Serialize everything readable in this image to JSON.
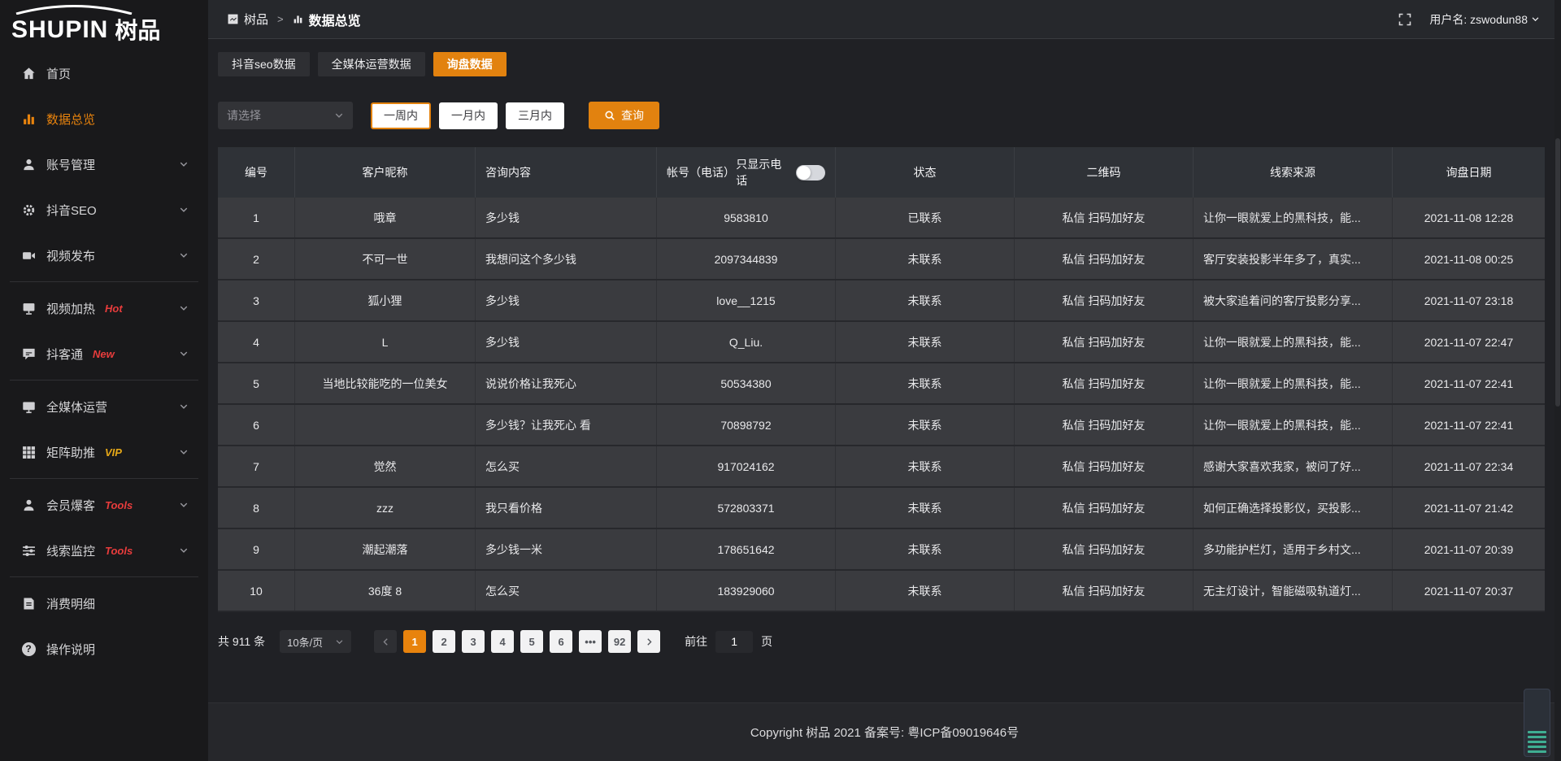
{
  "logo": {
    "text": "SHUPIN",
    "cn": "树品"
  },
  "header": {
    "breadcrumb": {
      "root": "树品",
      "separator": ">",
      "current": "数据总览"
    },
    "username_label": "用户名: zswodun88"
  },
  "sidebar": {
    "items": [
      {
        "key": "home",
        "label": "首页",
        "icon": "home-icon"
      },
      {
        "key": "data-overview",
        "label": "数据总览",
        "icon": "chart-icon",
        "active": true
      },
      {
        "key": "account-manage",
        "label": "账号管理",
        "icon": "user-icon",
        "chevron": true
      },
      {
        "key": "douyin-seo",
        "label": "抖音SEO",
        "icon": "gear-icon",
        "chevron": true
      },
      {
        "key": "video-publish",
        "label": "视频发布",
        "icon": "video-icon",
        "chevron": true,
        "divider_after": true
      },
      {
        "key": "video-heating",
        "label": "视频加热",
        "icon": "monitor-icon",
        "chevron": true,
        "badge": "Hot",
        "badge_color": "#e83c3c"
      },
      {
        "key": "doukutong",
        "label": "抖客通",
        "icon": "chat-icon",
        "chevron": true,
        "badge": "New",
        "badge_color": "#e83c3c",
        "divider_after": true
      },
      {
        "key": "all-media",
        "label": "全媒体运营",
        "icon": "display-icon",
        "chevron": true
      },
      {
        "key": "matrix-boost",
        "label": "矩阵助推",
        "icon": "grid-icon",
        "chevron": true,
        "badge": "VIP",
        "badge_color": "#e6a817",
        "divider_after": true
      },
      {
        "key": "member-baoke",
        "label": "会员爆客",
        "icon": "person-icon",
        "chevron": true,
        "badge": "Tools",
        "badge_color": "#e83c3c"
      },
      {
        "key": "lead-monitor",
        "label": "线索监控",
        "icon": "sliders-icon",
        "chevron": true,
        "badge": "Tools",
        "badge_color": "#e83c3c",
        "divider_after": true
      },
      {
        "key": "consumption",
        "label": "消费明细",
        "icon": "bill-icon"
      },
      {
        "key": "operation-guide",
        "label": "操作说明",
        "icon": "help-icon"
      }
    ]
  },
  "tabs": [
    {
      "key": "douyin-seo-data",
      "label": "抖音seo数据"
    },
    {
      "key": "media-operation-data",
      "label": "全媒体运营数据"
    },
    {
      "key": "inquiry-data",
      "label": "询盘数据",
      "active": true
    }
  ],
  "filters": {
    "select_placeholder": "请选择",
    "quick_ranges": [
      {
        "key": "week",
        "label": "一周内",
        "selected": true
      },
      {
        "key": "month",
        "label": "一月内"
      },
      {
        "key": "three-months",
        "label": "三月内"
      }
    ],
    "search_label": "查询"
  },
  "table": {
    "phone_toggle_label": "只显示电话",
    "columns": [
      {
        "key": "id",
        "label": "编号"
      },
      {
        "key": "nickname",
        "label": "客户昵称"
      },
      {
        "key": "content",
        "label": "咨询内容",
        "align": "left"
      },
      {
        "key": "account",
        "label": "帐号（电话）",
        "toggle": true
      },
      {
        "key": "status",
        "label": "状态"
      },
      {
        "key": "qr",
        "label": "二维码"
      },
      {
        "key": "source",
        "label": "线索来源",
        "value_align": "left"
      },
      {
        "key": "date",
        "label": "询盘日期"
      }
    ],
    "rows": [
      {
        "id": "1",
        "nickname": "哦章",
        "content": "多少钱",
        "account": "9583810",
        "status": "已联系",
        "contacted": true,
        "qr": "私信 扫码加好友",
        "source": "让你一眼就爱上的黑科技，能...",
        "date": "2021-11-08 12:28"
      },
      {
        "id": "2",
        "nickname": "不可一世",
        "content": "我想问这个多少钱",
        "account": "2097344839",
        "status": "未联系",
        "contacted": false,
        "qr": "私信 扫码加好友",
        "source": "客厅安装投影半年多了，真实...",
        "date": "2021-11-08 00:25"
      },
      {
        "id": "3",
        "nickname": "狐小狸",
        "content": "多少钱",
        "account": "love__1215",
        "status": "未联系",
        "contacted": false,
        "qr": "私信 扫码加好友",
        "source": "被大家追着问的客厅投影分享...",
        "date": "2021-11-07 23:18"
      },
      {
        "id": "4",
        "nickname": "L",
        "content": "多少钱",
        "account": "Q_Liu.",
        "status": "未联系",
        "contacted": false,
        "qr": "私信 扫码加好友",
        "source": "让你一眼就爱上的黑科技，能...",
        "date": "2021-11-07 22:47"
      },
      {
        "id": "5",
        "nickname": "当地比较能吃的一位美女",
        "content": "说说价格让我死心",
        "account": "50534380",
        "status": "未联系",
        "contacted": false,
        "qr": "私信 扫码加好友",
        "source": "让你一眼就爱上的黑科技，能...",
        "date": "2021-11-07 22:41"
      },
      {
        "id": "6",
        "nickname": "",
        "content": "多少钱？让我死心 看",
        "account": "70898792",
        "status": "未联系",
        "contacted": false,
        "qr": "私信 扫码加好友",
        "source": "让你一眼就爱上的黑科技，能...",
        "date": "2021-11-07 22:41"
      },
      {
        "id": "7",
        "nickname": "觉然",
        "content": "怎么买",
        "account": "917024162",
        "status": "未联系",
        "contacted": false,
        "qr": "私信 扫码加好友",
        "source": "感谢大家喜欢我家，被问了好...",
        "date": "2021-11-07 22:34"
      },
      {
        "id": "8",
        "nickname": "zzz",
        "content": "我只看价格",
        "account": "572803371",
        "status": "未联系",
        "contacted": false,
        "qr": "私信 扫码加好友",
        "source": "如何正确选择投影仪，买投影...",
        "date": "2021-11-07 21:42"
      },
      {
        "id": "9",
        "nickname": "潮起潮落",
        "content": "多少钱一米",
        "account": "178651642",
        "status": "未联系",
        "contacted": false,
        "qr": "私信 扫码加好友",
        "source": "多功能护栏灯，适用于乡村文...",
        "date": "2021-11-07 20:39"
      },
      {
        "id": "10",
        "nickname": "36度 8",
        "content": "怎么买",
        "account": "183929060",
        "status": "未联系",
        "contacted": false,
        "qr": "私信 扫码加好友",
        "source": "无主灯设计，智能磁吸轨道灯...",
        "date": "2021-11-07 20:37"
      }
    ]
  },
  "pagination": {
    "total_label": "共 911 条",
    "page_size": "10条/页",
    "pages": [
      "1",
      "2",
      "3",
      "4",
      "5",
      "6",
      "•••",
      "92"
    ],
    "active_page": "1",
    "goto_label": "前往",
    "goto_value": "1",
    "page_unit": "页"
  },
  "footer": {
    "copyright": "Copyright 树品 2021 备案号: 粤ICP备09019646号"
  },
  "colors": {
    "accent": "#e2820f",
    "link": "#ef8b1c",
    "hot": "#e83c3c",
    "vip": "#e6a817",
    "widget_bar": "#3fae92"
  }
}
